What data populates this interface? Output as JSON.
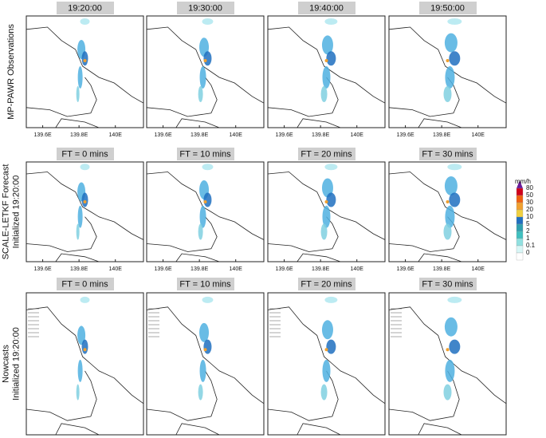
{
  "rows": [
    {
      "label": [
        "MP-PAWR Observations"
      ],
      "panels": [
        "19:20:00",
        "19:30:00",
        "19:40:00",
        "19:50:00"
      ],
      "xticks": [
        "139.6E",
        "139.8E",
        "140E"
      ]
    },
    {
      "label": [
        "SCALE-LETKF Forecast",
        "Initialized 19:20:00"
      ],
      "panels": [
        "FT = 0 mins",
        "FT = 10 mins",
        "FT = 20 mins",
        "FT = 30 mins"
      ],
      "xticks": [
        "139.6E",
        "139.8E",
        "140E"
      ]
    },
    {
      "label": [
        "Nowcasts",
        "Initialized 19:20:00"
      ],
      "panels": [
        "FT = 0 mins",
        "FT = 10 mins",
        "FT = 20 mins",
        "FT = 30 mins"
      ]
    }
  ],
  "colorbar": {
    "unit": "mm/h",
    "labels": [
      "80",
      "50",
      "30",
      "20",
      "10",
      "5",
      "2",
      "1",
      "0.1",
      "0"
    ]
  }
}
